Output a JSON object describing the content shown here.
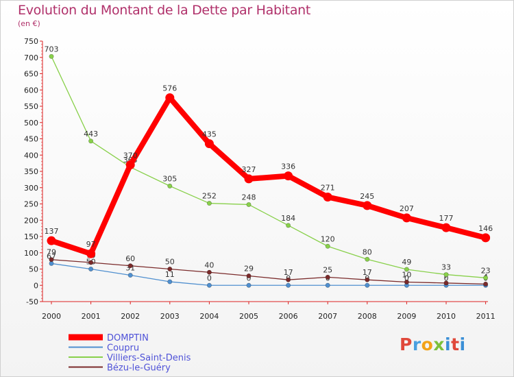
{
  "header": {
    "title": "Evolution du Montant de la Dette par Habitant",
    "subtitle": "(en €)"
  },
  "logo_text": "Proxiti",
  "colors": {
    "title": "#b0306a",
    "legend_text": "#4f52d8"
  },
  "chart_data": {
    "type": "line",
    "title": "Evolution du Montant de la Dette par Habitant",
    "ylabel": "(en €)",
    "xlabel": "",
    "categories": [
      "2000",
      "2001",
      "2002",
      "2003",
      "2004",
      "2005",
      "2006",
      "2007",
      "2008",
      "2009",
      "2010",
      "2011"
    ],
    "ylim": [
      -50,
      750
    ],
    "yticks": [
      -50,
      0,
      50,
      100,
      150,
      200,
      250,
      300,
      350,
      400,
      450,
      500,
      550,
      600,
      650,
      700,
      750
    ],
    "grid": false,
    "legend_position": "bottom-left",
    "series": [
      {
        "name": "DOMPTIN",
        "color": "#ff0000",
        "values": [
          137,
          97,
          370,
          576,
          435,
          327,
          336,
          271,
          245,
          207,
          177,
          146
        ]
      },
      {
        "name": "Coupru",
        "color": "#4f8fcf",
        "values": [
          67,
          50,
          31,
          11,
          0,
          0,
          0,
          0,
          0,
          0,
          0,
          0
        ]
      },
      {
        "name": "Villiers-Saint-Denis",
        "color": "#88d04a",
        "values": [
          703,
          443,
          363,
          305,
          252,
          248,
          184,
          120,
          80,
          49,
          33,
          23
        ]
      },
      {
        "name": "Bézu-le-Guéry",
        "color": "#7a2a2a",
        "values": [
          79,
          70,
          60,
          50,
          40,
          29,
          17,
          25,
          17,
          10,
          7,
          4
        ]
      }
    ]
  }
}
